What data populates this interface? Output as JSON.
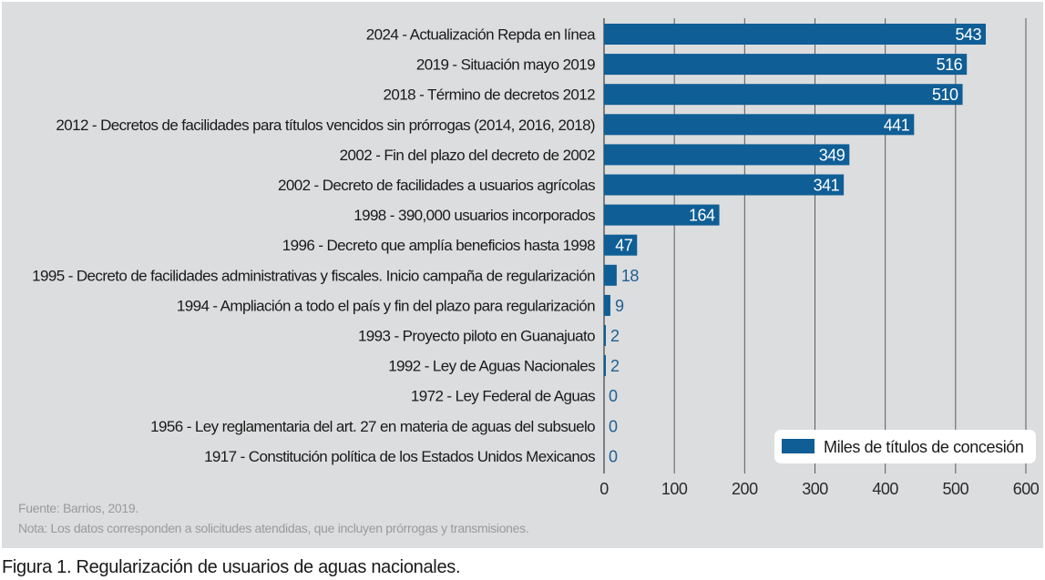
{
  "chart_data": {
    "type": "bar",
    "orientation": "horizontal",
    "title": "",
    "xlabel": "",
    "ylabel": "",
    "xlim": [
      0,
      600
    ],
    "xticks": [
      0,
      100,
      200,
      300,
      400,
      500,
      600
    ],
    "grid": true,
    "legend": {
      "placement": "bottom-right",
      "entries": [
        "Miles de títulos de concesión"
      ]
    },
    "series_color": "#0f5e96",
    "categories": [
      "2024 - Actualización Repda en línea",
      "2019 - Situación mayo 2019",
      "2018 - Término de decretos 2012",
      "2012 - Decretos de facilidades para títulos vencidos sin prórrogas (2014, 2016, 2018)",
      "2002 - Fin del plazo del decreto de 2002",
      "2002 - Decreto de facilidades a usuarios agrícolas",
      "1998 - 390,000 usuarios incorporados",
      "1996 - Decreto que amplía beneficios hasta 1998",
      "1995 - Decreto de facilidades administrativas y fiscales. Inicio campaña de regularización",
      "1994 - Ampliación a todo el país y fin del plazo para regularización",
      "1993 - Proyecto piloto en Guanajuato",
      "1992 - Ley de Aguas Nacionales",
      "1972 - Ley Federal de Aguas",
      "1956 - Ley reglamentaria del art. 27 en materia de aguas del subsuelo",
      "1917 - Constitución política de los Estados Unidos Mexicanos"
    ],
    "series": [
      {
        "name": "Miles de títulos de concesión",
        "values": [
          543,
          516,
          510,
          441,
          349,
          341,
          164,
          47,
          18,
          9,
          2,
          2,
          0,
          0,
          0
        ]
      }
    ]
  },
  "footer": {
    "source": "Fuente: Barrios, 2019.",
    "note": "Nota: Los datos corresponden a solicitudes atendidas, que incluyen prórrogas y transmisiones."
  },
  "caption": "Figura 1. Regularización de usuarios de aguas nacionales."
}
